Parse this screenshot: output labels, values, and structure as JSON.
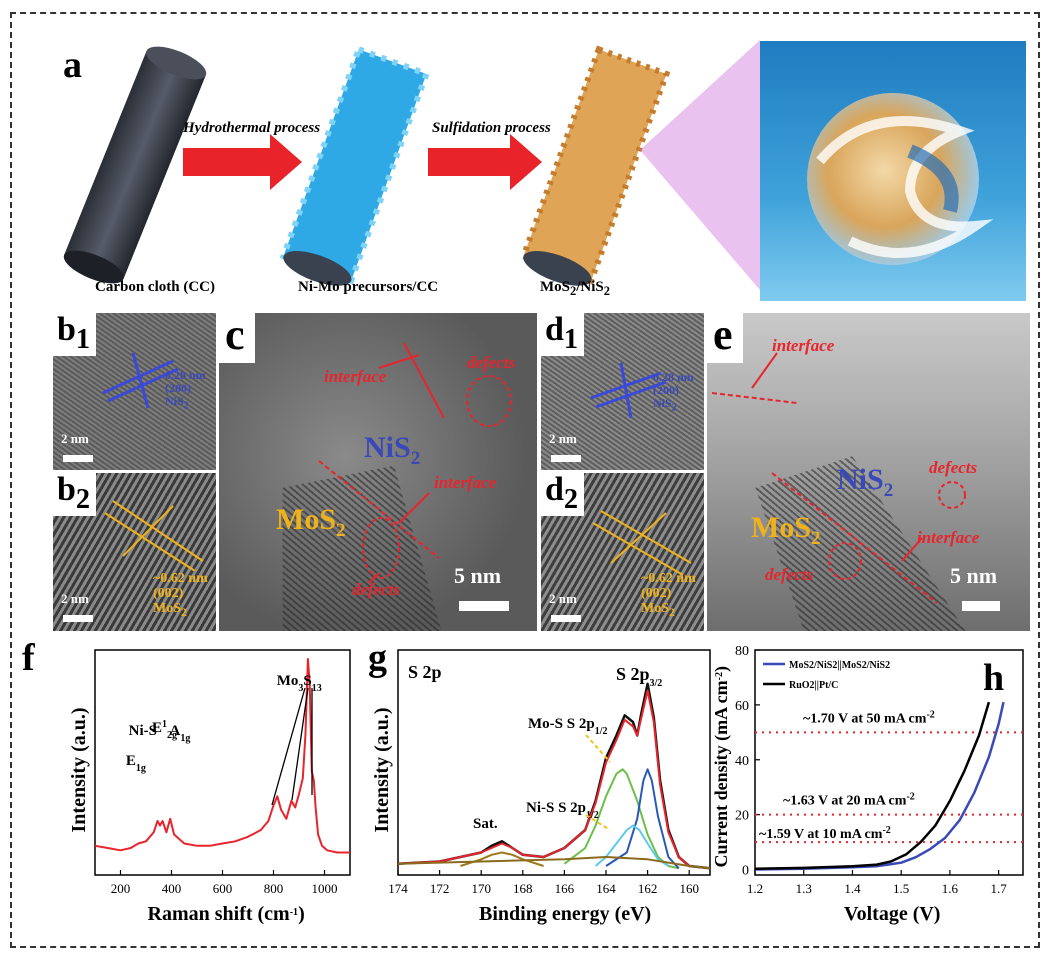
{
  "panel_labels": {
    "a": "a",
    "b": "b",
    "b1_sub": "1",
    "b2_sub": "2",
    "c": "c",
    "d": "d",
    "d1_sub": "1",
    "d2_sub": "2",
    "e": "e",
    "f": "f",
    "g": "g",
    "h": "h"
  },
  "schematic": {
    "step1_caption": "Carbon cloth (CC)",
    "step2_caption": "Ni-Mo precursors/CC",
    "step3_caption_base": "MoS",
    "step3_caption_sub1": "2",
    "step3_caption_mid": "/NiS",
    "step3_caption_sub2": "2",
    "arrow1_label": "Hydrothermal process",
    "arrow2_label": "Sulfidation process",
    "colors": {
      "arrow": "#e8232a",
      "carbon": "#3a3f48",
      "precursor": "#2fa9e6",
      "product": "#e0a457",
      "water": "#3e9ed6"
    }
  },
  "tem": {
    "b1": {
      "scale": "2 nm",
      "lattice_1": "0.28 nm",
      "lattice_2": "(200)",
      "lattice_3": "NiS",
      "lattice_3_sub": "2"
    },
    "b2": {
      "scale": "2 nm",
      "lattice_1": "~0.62 nm",
      "lattice_2": "(002)",
      "lattice_3": "MoS",
      "lattice_3_sub": "2"
    },
    "c": {
      "interface_top": "interface",
      "interface_mid": "interface",
      "defects_top": "defects",
      "defects_bottom": "defects",
      "nis2_base": "NiS",
      "nis2_sub": "2",
      "mos2_base": "MoS",
      "mos2_sub": "2",
      "scale": "5 nm"
    },
    "d1": {
      "scale": "2 nm",
      "lattice_1": "0.28 nm",
      "lattice_2": "(200)",
      "lattice_3": "NiS",
      "lattice_3_sub": "2"
    },
    "d2": {
      "scale": "2 nm",
      "lattice_1": "~0.62 nm",
      "lattice_2": "(002)",
      "lattice_3": "MoS",
      "lattice_3_sub": "2"
    },
    "e": {
      "interface_top": "interface",
      "interface_mid": "interface",
      "defects_right": "defects",
      "defects_left": "defects",
      "nis2_base": "NiS",
      "nis2_sub": "2",
      "mos2_base": "MoS",
      "mos2_sub": "2",
      "scale": "5 nm"
    }
  },
  "chart_data": [
    {
      "panel": "f",
      "type": "line",
      "xlabel": "Raman shift (cm-1)",
      "ylabel": "Intensity (a.u.)",
      "xlim": [
        100,
        1100
      ],
      "xticks": [
        200,
        400,
        600,
        800,
        1000
      ],
      "ylim": [
        0,
        1
      ],
      "color": "#e8242d",
      "annotations": [
        {
          "text": "E",
          "sub": "1g",
          "x": 280
        },
        {
          "text": "Ni-S",
          "x": 330
        },
        {
          "text": "E",
          "sup": "1",
          "sub": "2g",
          "x": 355
        },
        {
          "text": "A",
          "sub": "1g",
          "x": 400
        },
        {
          "text": "Mo",
          "sub": "3",
          "after": "S",
          "sub2": "13",
          "x": 950
        }
      ],
      "series": [
        {
          "x": [
            100,
            150,
            200,
            240,
            270,
            300,
            330,
            345,
            355,
            365,
            380,
            395,
            410,
            450,
            500,
            550,
            600,
            650,
            700,
            750,
            780,
            800,
            815,
            830,
            850,
            870,
            885,
            900,
            915,
            925,
            935,
            942,
            950,
            958,
            965,
            975,
            990,
            1010,
            1050,
            1100
          ],
          "y": [
            0.13,
            0.12,
            0.11,
            0.12,
            0.14,
            0.15,
            0.19,
            0.24,
            0.22,
            0.24,
            0.19,
            0.25,
            0.18,
            0.14,
            0.13,
            0.13,
            0.14,
            0.15,
            0.17,
            0.2,
            0.24,
            0.31,
            0.35,
            0.29,
            0.25,
            0.33,
            0.3,
            0.36,
            0.43,
            0.62,
            0.96,
            0.85,
            0.46,
            0.42,
            0.3,
            0.18,
            0.13,
            0.11,
            0.1,
            0.1
          ]
        }
      ]
    },
    {
      "panel": "g",
      "type": "line",
      "title": "S 2p",
      "xlabel": "Binding energy (eV)",
      "ylabel": "Intensity (a.u.)",
      "xlim": [
        174,
        159
      ],
      "xticks": [
        174,
        172,
        170,
        168,
        166,
        164,
        162,
        160
      ],
      "ylim": [
        0,
        1
      ],
      "annotations": [
        {
          "text": "S 2p",
          "sub": "3/2"
        },
        {
          "text": "Mo-S S 2p",
          "sub": "1/2"
        },
        {
          "text": "Ni-S S 2p",
          "sub": "1/2"
        },
        {
          "text": "Sat."
        }
      ],
      "series": [
        {
          "name": "raw",
          "color": "#111111",
          "x": [
            174,
            172,
            171,
            170,
            169.5,
            169,
            168.5,
            168,
            167,
            166,
            165,
            164.5,
            164,
            163.5,
            163.1,
            162.7,
            162.5,
            162.3,
            162.0,
            161.7,
            161.4,
            161,
            160.5,
            160,
            159
          ],
          "y": [
            0.05,
            0.06,
            0.08,
            0.1,
            0.13,
            0.15,
            0.12,
            0.09,
            0.08,
            0.12,
            0.2,
            0.33,
            0.52,
            0.62,
            0.71,
            0.68,
            0.62,
            0.72,
            0.85,
            0.7,
            0.42,
            0.2,
            0.08,
            0.04,
            0.03
          ]
        },
        {
          "name": "envelope",
          "color": "#e8242d",
          "x": [
            174,
            172,
            171,
            170,
            169.5,
            169,
            168.5,
            168,
            167,
            166,
            165,
            164.5,
            164,
            163.5,
            163.1,
            162.7,
            162.5,
            162.3,
            162.0,
            161.7,
            161.4,
            161,
            160.5,
            160,
            159
          ],
          "y": [
            0.05,
            0.06,
            0.08,
            0.1,
            0.12,
            0.14,
            0.12,
            0.09,
            0.08,
            0.12,
            0.2,
            0.32,
            0.5,
            0.6,
            0.69,
            0.66,
            0.62,
            0.7,
            0.82,
            0.68,
            0.4,
            0.19,
            0.08,
            0.04,
            0.03
          ]
        },
        {
          "name": "Mo-S 2p1/2",
          "color": "#6cc04a",
          "x": [
            166,
            165,
            164.5,
            164,
            163.5,
            163.2,
            163,
            162.5,
            162,
            161.5,
            161,
            160.5
          ],
          "y": [
            0.05,
            0.12,
            0.22,
            0.35,
            0.45,
            0.47,
            0.45,
            0.33,
            0.18,
            0.08,
            0.04,
            0.03
          ]
        },
        {
          "name": "Mo-S 2p3/2",
          "color": "#2a58b8",
          "x": [
            164,
            163,
            162.5,
            162.2,
            162,
            161.8,
            161.5,
            161,
            160.5
          ],
          "y": [
            0.04,
            0.1,
            0.25,
            0.42,
            0.47,
            0.42,
            0.26,
            0.08,
            0.03
          ]
        },
        {
          "name": "Ni-S 2p1/2",
          "color": "#5fc9e8",
          "x": [
            164.5,
            164,
            163.5,
            163,
            162.7,
            162.4,
            162,
            161.5,
            161
          ],
          "y": [
            0.04,
            0.08,
            0.14,
            0.2,
            0.22,
            0.2,
            0.14,
            0.07,
            0.04
          ]
        },
        {
          "name": "Sat.",
          "color": "#9c7a1a",
          "x": [
            171,
            170,
            169.5,
            169,
            168.5,
            168,
            167
          ],
          "y": [
            0.04,
            0.07,
            0.09,
            0.1,
            0.09,
            0.07,
            0.04
          ]
        },
        {
          "name": "background",
          "color": "#8a6a1d",
          "x": [
            174,
            170,
            166,
            164,
            162,
            160,
            159
          ],
          "y": [
            0.05,
            0.06,
            0.07,
            0.08,
            0.07,
            0.04,
            0.03
          ]
        }
      ]
    },
    {
      "panel": "h",
      "type": "line",
      "xlabel": "Voltage (V)",
      "ylabel": "Current density (mA cm-2)",
      "xlim": [
        1.2,
        1.75
      ],
      "ylim": [
        -2,
        80
      ],
      "xticks": [
        1.2,
        1.3,
        1.4,
        1.5,
        1.6,
        1.7
      ],
      "yticks": [
        0,
        20,
        40,
        60,
        80
      ],
      "legend": "top-left",
      "reference_lines": [
        10,
        20,
        50
      ],
      "annotations": [
        {
          "text": "~1.70 V at 50 mA cm",
          "sup": "-2"
        },
        {
          "text": "~1.63 V at 20 mA cm",
          "sup": "-2"
        },
        {
          "text": "~1.59 V at 10 mA cm",
          "sup": "-2"
        }
      ],
      "series": [
        {
          "name": "MoS2/NiS2||MoS2/NiS2",
          "color": "#3a49b8",
          "x": [
            1.2,
            1.3,
            1.4,
            1.45,
            1.5,
            1.53,
            1.56,
            1.59,
            1.62,
            1.65,
            1.68,
            1.7,
            1.71
          ],
          "y": [
            0,
            0.3,
            0.8,
            1.2,
            2.5,
            4.5,
            7.5,
            11.5,
            18,
            28,
            41,
            53,
            61
          ]
        },
        {
          "name": "RuO2||Pt/C",
          "color": "#000000",
          "x": [
            1.2,
            1.3,
            1.4,
            1.45,
            1.48,
            1.51,
            1.54,
            1.57,
            1.6,
            1.63,
            1.66,
            1.68
          ],
          "y": [
            0.3,
            0.6,
            1.2,
            1.8,
            3,
            5.5,
            10,
            16,
            25,
            36,
            49,
            61
          ]
        }
      ]
    }
  ]
}
